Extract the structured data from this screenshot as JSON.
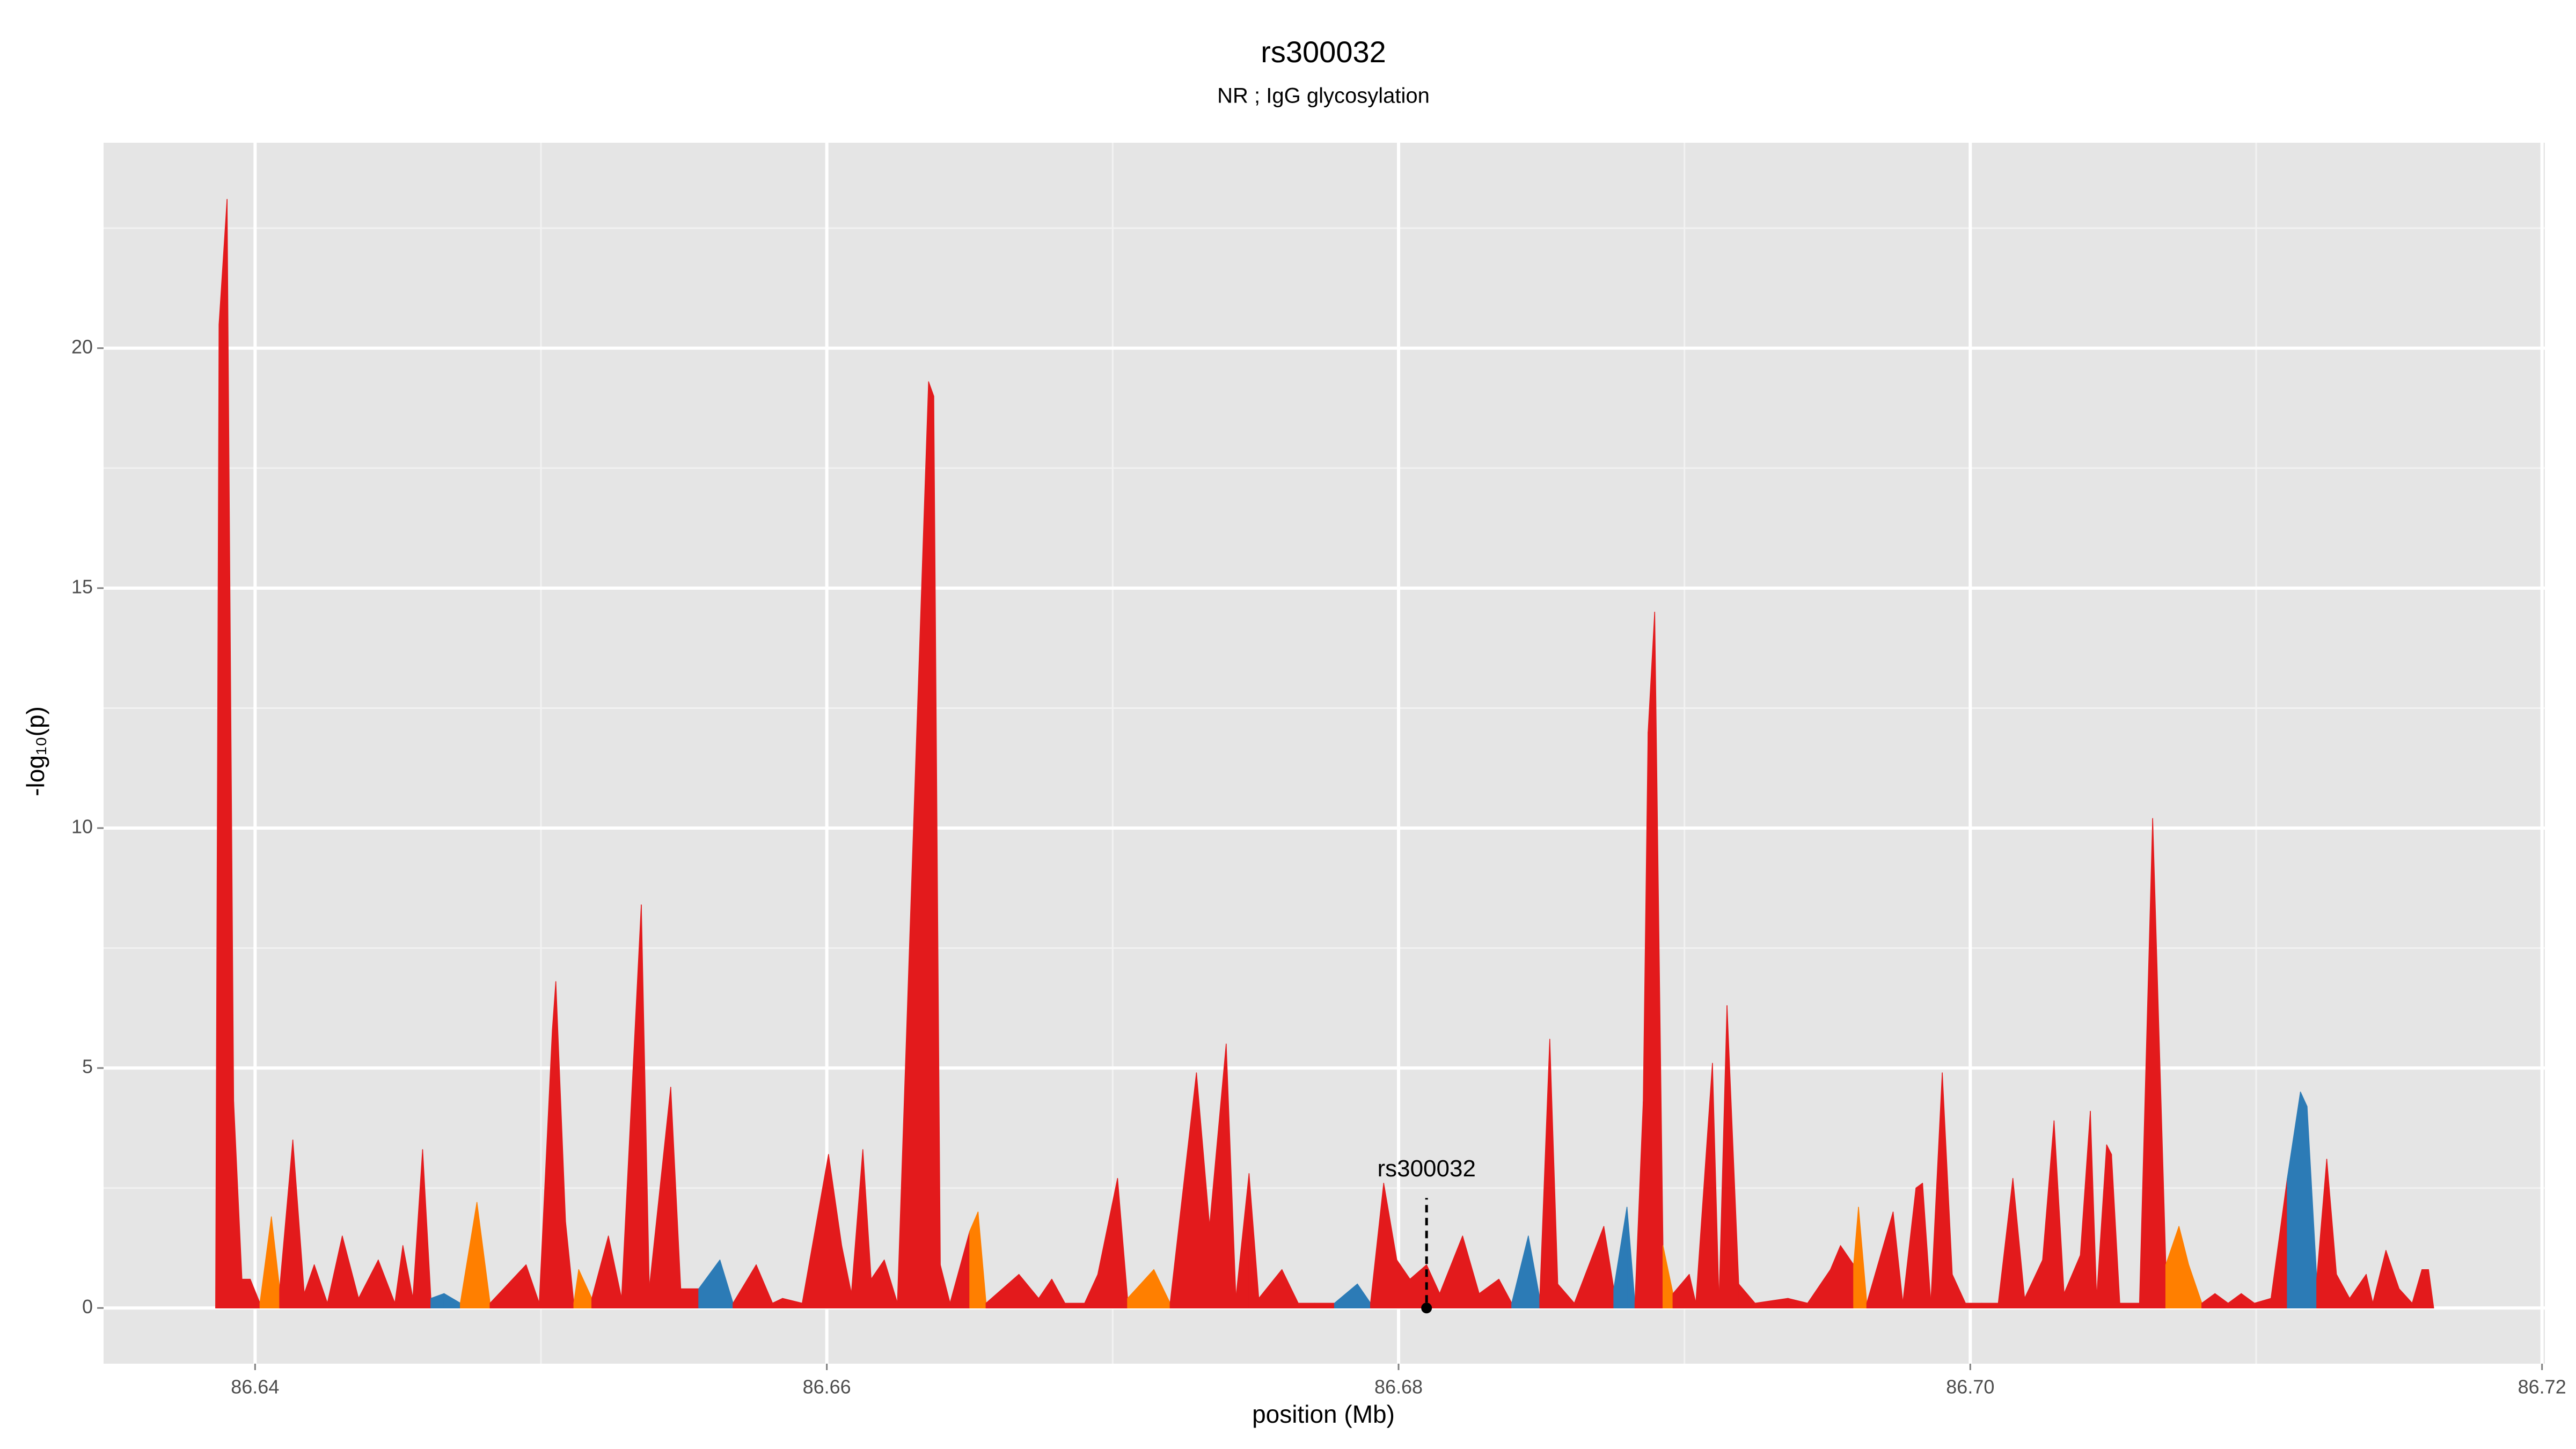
{
  "chart_data": {
    "type": "area",
    "title": "rs300032",
    "subtitle": "NR ; IgG glycosylation",
    "xlabel": "position (Mb)",
    "ylabel": "-log₁₀(p)",
    "xlim": [
      86.6347,
      86.7201
    ],
    "ylim": [
      -1.16,
      24.28
    ],
    "xticks": [
      86.64,
      86.66,
      86.68,
      {
        "value": 86.7,
        "label": "86.70"
      },
      86.72
    ],
    "yticks": [
      0,
      5,
      10,
      15,
      20
    ],
    "x_minor_grid": [
      86.65,
      86.67,
      86.69,
      86.71
    ],
    "y_minor_grid": [
      2.5,
      7.5,
      12.5,
      17.5,
      22.5
    ],
    "grid": true,
    "background": "#e5e5e5",
    "x": [
      86.63862,
      86.63874,
      86.63902,
      86.63925,
      86.63954,
      86.63983,
      86.64017,
      86.64057,
      86.64086,
      86.64132,
      86.64172,
      86.64207,
      86.64253,
      86.64305,
      86.64362,
      86.64431,
      86.64489,
      86.64517,
      86.64552,
      86.64586,
      86.64615,
      86.64661,
      86.64718,
      86.64776,
      86.64822,
      86.64948,
      86.64994,
      86.6504,
      86.65052,
      86.65086,
      86.65115,
      86.65132,
      86.65178,
      86.65236,
      86.65282,
      86.65351,
      86.65379,
      86.65454,
      86.65489,
      86.65552,
      86.65626,
      86.65672,
      86.65753,
      86.6581,
      86.65845,
      86.65914,
      86.66006,
      86.66052,
      86.66086,
      86.66126,
      86.66155,
      86.66201,
      86.66247,
      86.66356,
      86.66374,
      86.66397,
      86.66431,
      86.665,
      86.66529,
      86.66557,
      86.66672,
      86.66741,
      86.66787,
      86.66833,
      86.66902,
      86.66948,
      86.67017,
      86.67052,
      86.67144,
      86.67201,
      86.67293,
      86.67339,
      86.67397,
      86.67431,
      86.67477,
      86.67511,
      86.67592,
      86.67649,
      86.67707,
      86.67776,
      86.67856,
      86.67902,
      86.67948,
      86.67994,
      86.6804,
      86.68098,
      86.68144,
      86.68224,
      86.68282,
      86.68351,
      86.68396,
      86.68454,
      86.68494,
      86.68529,
      86.68557,
      86.68615,
      86.68718,
      86.68753,
      86.68799,
      86.68827,
      86.68856,
      86.68873,
      86.68896,
      86.68925,
      86.6896,
      86.69017,
      86.6904,
      86.69098,
      86.69121,
      86.69149,
      86.6919,
      86.69247,
      86.69362,
      86.69431,
      86.69511,
      86.69546,
      86.69592,
      86.69609,
      86.69638,
      86.6973,
      86.69764,
      86.6981,
      86.69833,
      86.69862,
      86.69902,
      86.69937,
      86.69983,
      86.7004,
      86.70098,
      86.70149,
      86.7019,
      86.70253,
      86.70293,
      86.70328,
      86.70385,
      86.7042,
      86.70442,
      86.70477,
      86.70494,
      86.70523,
      86.70592,
      86.70638,
      86.70684,
      86.7073,
      86.70764,
      86.7081,
      86.70856,
      86.70902,
      86.70948,
      86.70994,
      86.71052,
      86.71109,
      86.71155,
      86.71178,
      86.71212,
      86.71247,
      86.71281,
      86.71327,
      86.71385,
      86.71408,
      86.71454,
      86.715,
      86.71546,
      86.7158,
      86.71603,
      86.71621
    ],
    "values": [
      0,
      20.5,
      23.1,
      4.3,
      0.6,
      0.6,
      0.1,
      1.9,
      0.4,
      3.5,
      0.3,
      0.9,
      0.1,
      1.5,
      0.2,
      1.0,
      0.1,
      1.3,
      0.2,
      3.3,
      0.2,
      0.3,
      0.1,
      2.2,
      0.1,
      0.9,
      0.1,
      5.8,
      6.8,
      1.8,
      0.1,
      0.8,
      0.2,
      1.5,
      0.2,
      8.4,
      0.4,
      4.6,
      0.4,
      0.4,
      1.0,
      0.1,
      0.9,
      0.1,
      0.2,
      0.1,
      3.2,
      1.3,
      0.3,
      3.3,
      0.6,
      1.0,
      0.1,
      19.3,
      19.0,
      0.9,
      0.1,
      1.6,
      2.0,
      0.1,
      0.7,
      0.2,
      0.6,
      0.1,
      0.1,
      0.7,
      2.7,
      0.2,
      0.8,
      0.1,
      4.9,
      1.7,
      5.5,
      0.2,
      2.8,
      0.2,
      0.8,
      0.1,
      0.1,
      0.1,
      0.5,
      0.1,
      2.6,
      1.0,
      0.6,
      0.9,
      0.3,
      1.5,
      0.3,
      0.6,
      0.1,
      1.5,
      0.2,
      5.6,
      0.5,
      0.1,
      1.7,
      0.4,
      2.1,
      0.1,
      4.3,
      12.0,
      14.5,
      1.3,
      0.3,
      0.7,
      0.1,
      5.1,
      0.1,
      6.3,
      0.5,
      0.1,
      0.2,
      0.1,
      0.8,
      1.3,
      0.9,
      2.1,
      0.1,
      2.0,
      0.1,
      2.5,
      2.6,
      0.1,
      4.9,
      0.7,
      0.1,
      0.1,
      0.1,
      2.7,
      0.2,
      1.0,
      3.9,
      0.3,
      1.1,
      4.1,
      0.2,
      3.4,
      3.2,
      0.1,
      0.1,
      10.2,
      0.9,
      1.7,
      0.9,
      0.1,
      0.3,
      0.1,
      0.3,
      0.1,
      0.2,
      2.7,
      4.5,
      4.2,
      0.6,
      3.1,
      0.7,
      0.2,
      0.7,
      0.1,
      1.2,
      0.4,
      0.1,
      0.8,
      0.8,
      0
    ],
    "colors": [
      "#e31a1c",
      "#e31a1c",
      "#e31a1c",
      "#e31a1c",
      "#e31a1c",
      "#e31a1c",
      "#e31a1c",
      "#ff7f00",
      "#e31a1c",
      "#e31a1c",
      "#e31a1c",
      "#e31a1c",
      "#e31a1c",
      "#e31a1c",
      "#e31a1c",
      "#e31a1c",
      "#e31a1c",
      "#e31a1c",
      "#e31a1c",
      "#e31a1c",
      "#e31a1c",
      "#2c7bb6",
      "#e31a1c",
      "#ff7f00",
      "#e31a1c",
      "#e31a1c",
      "#ff7f00",
      "#e31a1c",
      "#e31a1c",
      "#e31a1c",
      "#e31a1c",
      "#ff7f00",
      "#e31a1c",
      "#e31a1c",
      "#e31a1c",
      "#e31a1c",
      "#e31a1c",
      "#e31a1c",
      "#e31a1c",
      "#e31a1c",
      "#2c7bb6",
      "#e31a1c",
      "#e31a1c",
      "#e31a1c",
      "#e31a1c",
      "#e31a1c",
      "#e31a1c",
      "#e31a1c",
      "#e31a1c",
      "#e31a1c",
      "#e31a1c",
      "#e31a1c",
      "#e31a1c",
      "#e31a1c",
      "#e31a1c",
      "#e31a1c",
      "#e31a1c",
      "#e31a1c",
      "#ff7f00",
      "#e31a1c",
      "#e31a1c",
      "#e31a1c",
      "#e31a1c",
      "#e31a1c",
      "#e31a1c",
      "#e31a1c",
      "#e31a1c",
      "#e31a1c",
      "#ff7f00",
      "#e31a1c",
      "#e31a1c",
      "#e31a1c",
      "#e31a1c",
      "#e31a1c",
      "#e31a1c",
      "#e31a1c",
      "#e31a1c",
      "#e31a1c",
      "#e31a1c",
      "#2c7bb6",
      "#2c7bb6",
      "#e31a1c",
      "#e31a1c",
      "#e31a1c",
      "#e31a1c",
      "#e31a1c",
      "#e31a1c",
      "#e31a1c",
      "#e31a1c",
      "#e31a1c",
      "#e31a1c",
      "#2c7bb6",
      "#e31a1c",
      "#e31a1c",
      "#e31a1c",
      "#e31a1c",
      "#e31a1c",
      "#e31a1c",
      "#2c7bb6",
      "#e31a1c",
      "#e31a1c",
      "#e31a1c",
      "#e31a1c",
      "#ff7f00",
      "#e31a1c",
      "#e31a1c",
      "#e31a1c",
      "#e31a1c",
      "#ff7f00",
      "#e31a1c",
      "#e31a1c",
      "#e31a1c",
      "#e31a1c",
      "#e31a1c",
      "#e31a1c",
      "#e31a1c",
      "#e31a1c",
      "#ff7f00",
      "#e31a1c",
      "#e31a1c",
      "#e31a1c",
      "#e31a1c",
      "#e31a1c",
      "#e31a1c",
      "#e31a1c",
      "#e31a1c",
      "#e31a1c",
      "#e31a1c",
      "#e31a1c",
      "#e31a1c",
      "#e31a1c",
      "#e31a1c",
      "#e31a1c",
      "#e31a1c",
      "#e31a1c",
      "#e31a1c",
      "#e31a1c",
      "#e31a1c",
      "#e31a1c",
      "#e31a1c",
      "#e31a1c",
      "#e31a1c",
      "#ff7f00",
      "#ff7f00",
      "#ff7f00",
      "#ff7f00",
      "#e31a1c",
      "#e31a1c",
      "#e31a1c",
      "#2c7bb6",
      "#e31a1c",
      "#e31a1c",
      "#2c7bb6",
      "#2c7bb6",
      "#e31a1c",
      "#e31a1c",
      "#e31a1c",
      "#e31a1c",
      "#e31a1c",
      "#e31a1c",
      "#e31a1c",
      "#e31a1c",
      "#e31a1c",
      "#e31a1c",
      "#e31a1c",
      "#e31a1c"
    ],
    "annotation": {
      "label": "rs300032",
      "x": 86.68098,
      "y": 0
    }
  }
}
